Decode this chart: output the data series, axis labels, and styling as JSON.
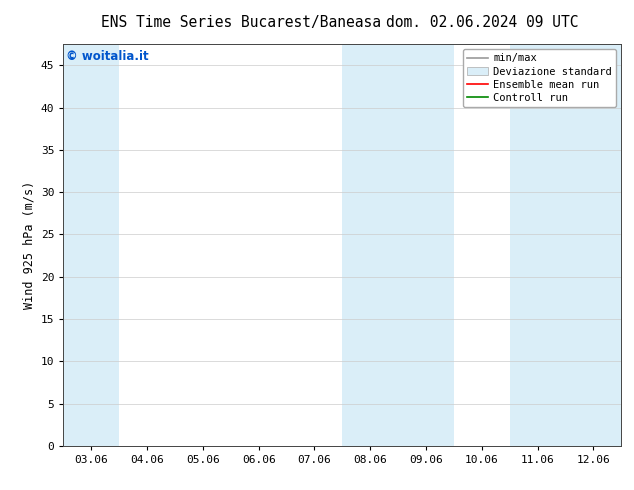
{
  "title_left": "ENS Time Series Bucarest/Baneasa",
  "title_right": "dom. 02.06.2024 09 UTC",
  "ylabel": "Wind 925 hPa (m/s)",
  "watermark": "© woitalia.it",
  "watermark_color": "#0055cc",
  "ylim": [
    0,
    47.5
  ],
  "yticks": [
    0,
    5,
    10,
    15,
    20,
    25,
    30,
    35,
    40,
    45
  ],
  "x_labels": [
    "03.06",
    "04.06",
    "05.06",
    "06.06",
    "07.06",
    "08.06",
    "09.06",
    "10.06",
    "11.06",
    "12.06"
  ],
  "x_positions": [
    0,
    1,
    2,
    3,
    4,
    5,
    6,
    7,
    8,
    9
  ],
  "xlim": [
    -0.5,
    9.5
  ],
  "background_color": "#ffffff",
  "plot_bg_color": "#ffffff",
  "band_color": "#daeef8",
  "shaded_bands": [
    {
      "x_start": -0.5,
      "x_end": 0.5
    },
    {
      "x_start": 4.5,
      "x_end": 5.5
    },
    {
      "x_start": 5.5,
      "x_end": 6.5
    },
    {
      "x_start": 7.5,
      "x_end": 8.5
    },
    {
      "x_start": 8.5,
      "x_end": 9.5
    }
  ],
  "legend_labels": [
    "min/max",
    "Deviazione standard",
    "Ensemble mean run",
    "Controll run"
  ],
  "legend_line_colors": [
    "#999999",
    "#ccddee",
    "#ff0000",
    "#008800"
  ],
  "title_fontsize": 10.5,
  "axis_fontsize": 8.5,
  "tick_fontsize": 8,
  "watermark_fontsize": 8.5,
  "legend_fontsize": 7.5
}
